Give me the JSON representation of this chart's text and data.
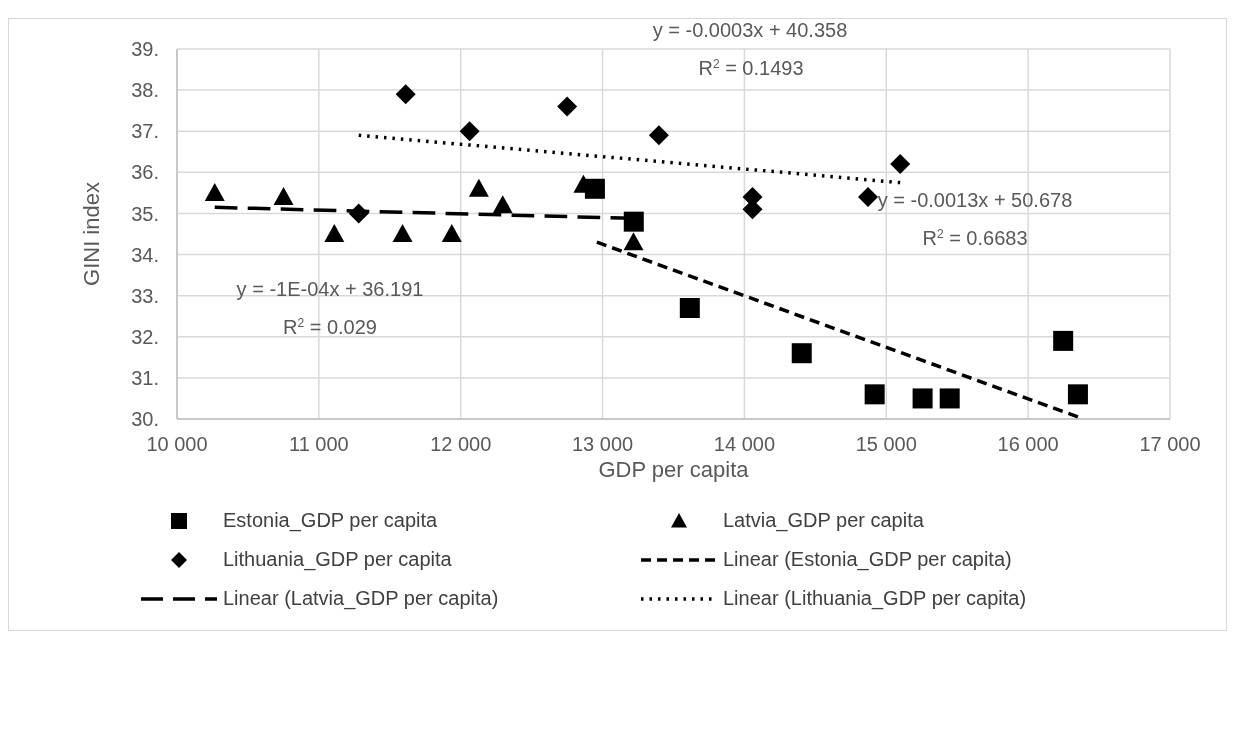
{
  "chart_data": {
    "type": "scatter",
    "xlabel": "GDP per capita",
    "ylabel": "GINI index",
    "xlim": [
      10000,
      17000
    ],
    "xticks": [
      {
        "value": 10000,
        "label": "10 000"
      },
      {
        "value": 11000,
        "label": "11 000"
      },
      {
        "value": 12000,
        "label": "12 000"
      },
      {
        "value": 13000,
        "label": "13 000"
      },
      {
        "value": 14000,
        "label": "14 000"
      },
      {
        "value": 15000,
        "label": "15 000"
      },
      {
        "value": 16000,
        "label": "16 000"
      },
      {
        "value": 17000,
        "label": "17 000"
      }
    ],
    "ylim": [
      30,
      39
    ],
    "yticks": [
      {
        "value": 30,
        "label": "30."
      },
      {
        "value": 31,
        "label": "31."
      },
      {
        "value": 32,
        "label": "32."
      },
      {
        "value": 33,
        "label": "33."
      },
      {
        "value": 34,
        "label": "34."
      },
      {
        "value": 35,
        "label": "35."
      },
      {
        "value": 36,
        "label": "36."
      },
      {
        "value": 37,
        "label": "37."
      },
      {
        "value": 38,
        "label": "38."
      },
      {
        "value": 39,
        "label": "39."
      }
    ],
    "grid": true,
    "legend": "bottom",
    "series": [
      {
        "name": "Estonia_GDP per capita",
        "marker": "square",
        "color": "#000000",
        "x": [
          12946,
          13220,
          13615,
          14404,
          14918,
          15256,
          15447,
          16247,
          16351
        ],
        "values": [
          35.6,
          34.8,
          32.7,
          31.6,
          30.6,
          30.5,
          30.5,
          31.9,
          30.6
        ]
      },
      {
        "name": "Latvia_GDP per capita",
        "marker": "triangle",
        "color": "#000000",
        "x": [
          10266,
          10751,
          11109,
          11590,
          11937,
          12128,
          12296,
          12865,
          13218
        ],
        "values": [
          35.5,
          35.4,
          34.5,
          34.5,
          34.5,
          35.6,
          35.2,
          35.7,
          34.3
        ]
      },
      {
        "name": "Lithuania_GDP per capita",
        "marker": "diamond",
        "color": "#000000",
        "x": [
          11281,
          11612,
          12063,
          12750,
          13397,
          14057,
          14057,
          14871,
          15098
        ],
        "values": [
          35.0,
          37.9,
          37.0,
          37.6,
          36.9,
          35.4,
          35.1,
          35.4,
          36.2
        ]
      },
      {
        "name": "Linear (Estonia_GDP per capita)",
        "type": "line",
        "line_style": "dashed",
        "color": "#000000",
        "x": [
          12960,
          16351
        ],
        "values": [
          34.3,
          30.05
        ]
      },
      {
        "name": "Linear (Latvia_GDP per capita)",
        "type": "line",
        "line_style": "dashed",
        "color": "#000000",
        "x": [
          10266,
          13218
        ],
        "values": [
          35.15,
          34.88
        ]
      },
      {
        "name": "Linear (Lithuania_GDP per capita)",
        "type": "line",
        "line_style": "dotted",
        "color": "#000000",
        "x": [
          11281,
          15098
        ],
        "values": [
          36.9,
          35.75
        ]
      }
    ],
    "annotations": [
      "y = -0.0003x + 40.358",
      "R$^{2}$ = 0.1493",
      "y = -0.0013x + 50.678",
      "R$^{2}$ = 0.6683",
      "y = -1E-04x + 36.191",
      "R$^{2}$ = 0.029"
    ]
  }
}
